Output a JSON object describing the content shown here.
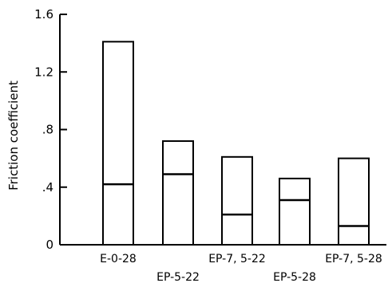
{
  "chart_data": {
    "type": "bar",
    "ylabel": "Friction coefficient",
    "ylim": [
      0,
      1.6
    ],
    "yticks": [
      {
        "value": 0,
        "label": "0"
      },
      {
        "value": 0.4,
        "label": ".4"
      },
      {
        "value": 0.8,
        "label": ".8"
      },
      {
        "value": 1.2,
        "label": "1.2"
      },
      {
        "value": 1.6,
        "label": "1.6"
      }
    ],
    "categories": [
      "E-0-28",
      "EP-5-22",
      "EP-7.5-22",
      "EP-5-28",
      "EP-7.5-28"
    ],
    "category_labels": [
      "E-0-28",
      "EP-5-22",
      "EP-7, 5-22",
      "EP-5-28",
      "EP-7, 5-28"
    ],
    "series": [
      {
        "values": [
          1.41,
          0.72,
          0.61,
          0.46,
          0.6
        ]
      },
      {
        "values": [
          0.42,
          0.49,
          0.21,
          0.31,
          0.13
        ]
      }
    ],
    "grid": false
  }
}
